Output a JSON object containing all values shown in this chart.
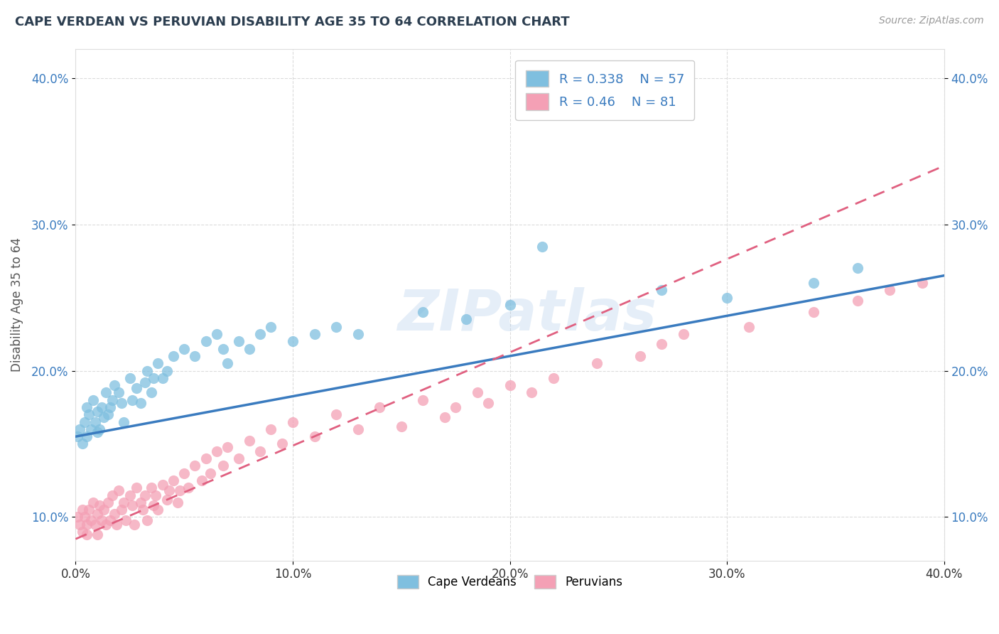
{
  "title": "CAPE VERDEAN VS PERUVIAN DISABILITY AGE 35 TO 64 CORRELATION CHART",
  "source": "Source: ZipAtlas.com",
  "ylabel": "Disability Age 35 to 64",
  "xlim": [
    0.0,
    0.4
  ],
  "ylim": [
    0.07,
    0.42
  ],
  "xtick_positions": [
    0.0,
    0.1,
    0.2,
    0.3,
    0.4
  ],
  "xticklabels": [
    "0.0%",
    "10.0%",
    "20.0%",
    "30.0%",
    "40.0%"
  ],
  "ytick_positions": [
    0.1,
    0.2,
    0.3,
    0.4
  ],
  "ytick_labels": [
    "10.0%",
    "20.0%",
    "30.0%",
    "40.0%"
  ],
  "cape_verdean_R": 0.338,
  "cape_verdean_N": 57,
  "peruvian_R": 0.46,
  "peruvian_N": 81,
  "cape_verdean_color": "#7fbfdf",
  "peruvian_color": "#f4a0b5",
  "trendline_cape_color": "#3a7bbf",
  "trendline_peru_color": "#e06080",
  "watermark": "ZIPatlas",
  "background_color": "#ffffff",
  "grid_color": "#cccccc",
  "cv_trendline": [
    0.155,
    0.265
  ],
  "pe_trendline": [
    0.085,
    0.34
  ],
  "cape_verdean_x": [
    0.001,
    0.002,
    0.003,
    0.004,
    0.005,
    0.005,
    0.006,
    0.007,
    0.008,
    0.009,
    0.01,
    0.01,
    0.011,
    0.012,
    0.013,
    0.014,
    0.015,
    0.016,
    0.017,
    0.018,
    0.02,
    0.021,
    0.022,
    0.025,
    0.026,
    0.028,
    0.03,
    0.032,
    0.033,
    0.035,
    0.036,
    0.038,
    0.04,
    0.042,
    0.045,
    0.05,
    0.055,
    0.06,
    0.065,
    0.068,
    0.07,
    0.075,
    0.08,
    0.085,
    0.09,
    0.1,
    0.11,
    0.12,
    0.13,
    0.16,
    0.18,
    0.2,
    0.215,
    0.27,
    0.3,
    0.34,
    0.36
  ],
  "cape_verdean_y": [
    0.155,
    0.16,
    0.15,
    0.165,
    0.155,
    0.175,
    0.17,
    0.16,
    0.18,
    0.165,
    0.158,
    0.172,
    0.16,
    0.175,
    0.168,
    0.185,
    0.17,
    0.175,
    0.18,
    0.19,
    0.185,
    0.178,
    0.165,
    0.195,
    0.18,
    0.188,
    0.178,
    0.192,
    0.2,
    0.185,
    0.195,
    0.205,
    0.195,
    0.2,
    0.21,
    0.215,
    0.21,
    0.22,
    0.225,
    0.215,
    0.205,
    0.22,
    0.215,
    0.225,
    0.23,
    0.22,
    0.225,
    0.23,
    0.225,
    0.24,
    0.235,
    0.245,
    0.285,
    0.255,
    0.25,
    0.26,
    0.27
  ],
  "peruvian_x": [
    0.001,
    0.002,
    0.003,
    0.003,
    0.004,
    0.005,
    0.005,
    0.006,
    0.007,
    0.008,
    0.009,
    0.01,
    0.01,
    0.011,
    0.012,
    0.013,
    0.014,
    0.015,
    0.016,
    0.017,
    0.018,
    0.019,
    0.02,
    0.021,
    0.022,
    0.023,
    0.025,
    0.026,
    0.027,
    0.028,
    0.03,
    0.031,
    0.032,
    0.033,
    0.035,
    0.036,
    0.037,
    0.038,
    0.04,
    0.042,
    0.043,
    0.045,
    0.047,
    0.048,
    0.05,
    0.052,
    0.055,
    0.058,
    0.06,
    0.062,
    0.065,
    0.068,
    0.07,
    0.075,
    0.08,
    0.085,
    0.09,
    0.095,
    0.1,
    0.11,
    0.12,
    0.13,
    0.14,
    0.15,
    0.16,
    0.17,
    0.175,
    0.185,
    0.19,
    0.2,
    0.21,
    0.22,
    0.24,
    0.26,
    0.27,
    0.28,
    0.31,
    0.34,
    0.36,
    0.375,
    0.39
  ],
  "peruvian_y": [
    0.1,
    0.095,
    0.105,
    0.09,
    0.1,
    0.095,
    0.088,
    0.105,
    0.098,
    0.11,
    0.095,
    0.102,
    0.088,
    0.108,
    0.098,
    0.105,
    0.095,
    0.11,
    0.098,
    0.115,
    0.102,
    0.095,
    0.118,
    0.105,
    0.11,
    0.098,
    0.115,
    0.108,
    0.095,
    0.12,
    0.11,
    0.105,
    0.115,
    0.098,
    0.12,
    0.108,
    0.115,
    0.105,
    0.122,
    0.112,
    0.118,
    0.125,
    0.11,
    0.118,
    0.13,
    0.12,
    0.135,
    0.125,
    0.14,
    0.13,
    0.145,
    0.135,
    0.148,
    0.14,
    0.152,
    0.145,
    0.16,
    0.15,
    0.165,
    0.155,
    0.17,
    0.16,
    0.175,
    0.162,
    0.18,
    0.168,
    0.175,
    0.185,
    0.178,
    0.19,
    0.185,
    0.195,
    0.205,
    0.21,
    0.218,
    0.225,
    0.23,
    0.24,
    0.248,
    0.255,
    0.26
  ]
}
